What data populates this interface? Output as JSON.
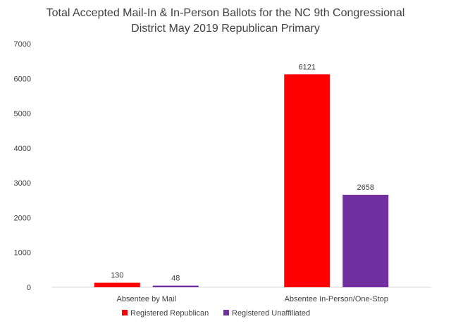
{
  "chart_data": {
    "type": "bar",
    "title_lines": [
      "Total Accepted Mail-In & In-Person Ballots for the NC 9th Congressional",
      "District May 2019 Republican Primary"
    ],
    "categories": [
      "Absentee by Mail",
      "Absentee In-Person/One-Stop"
    ],
    "series": [
      {
        "name": "Registered Republican",
        "color": "#ff0000",
        "values": [
          130,
          6121
        ]
      },
      {
        "name": "Registered Unaffiliated",
        "color": "#7030a0",
        "values": [
          48,
          2658
        ]
      }
    ],
    "yticks": [
      0,
      1000,
      2000,
      3000,
      4000,
      5000,
      6000,
      7000
    ],
    "ylim": [
      0,
      7000
    ],
    "xlabel": "",
    "ylabel": "",
    "grid": false,
    "legend_position": "bottom",
    "data_labels": true
  }
}
